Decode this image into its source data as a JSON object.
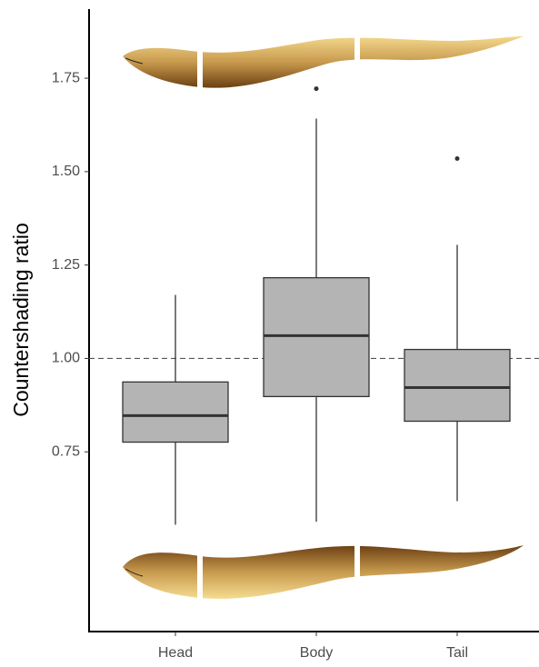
{
  "chart_data": {
    "type": "box",
    "y_label": "Countershading ratio",
    "categories": [
      "Head",
      "Body",
      "Tail"
    ],
    "boxes": [
      {
        "whisker_low": 0.555,
        "q1": 0.776,
        "median": 0.847,
        "q3": 0.937,
        "whisker_high": 1.17,
        "outliers": []
      },
      {
        "whisker_low": 0.563,
        "q1": 0.898,
        "median": 1.061,
        "q3": 1.216,
        "whisker_high": 1.642,
        "outliers": [
          1.722
        ]
      },
      {
        "whisker_low": 0.618,
        "q1": 0.832,
        "median": 0.922,
        "q3": 1.024,
        "whisker_high": 1.304,
        "outliers": [
          1.535
        ]
      }
    ],
    "color": "#b4b4b4",
    "hline": 1,
    "ylim": [
      0.269,
      1.935
    ],
    "yticks": [
      0.75,
      {
        "value": 1,
        "label": "1.00"
      },
      1.25,
      {
        "value": 1.5,
        "label": "1.50"
      },
      1.75
    ]
  }
}
